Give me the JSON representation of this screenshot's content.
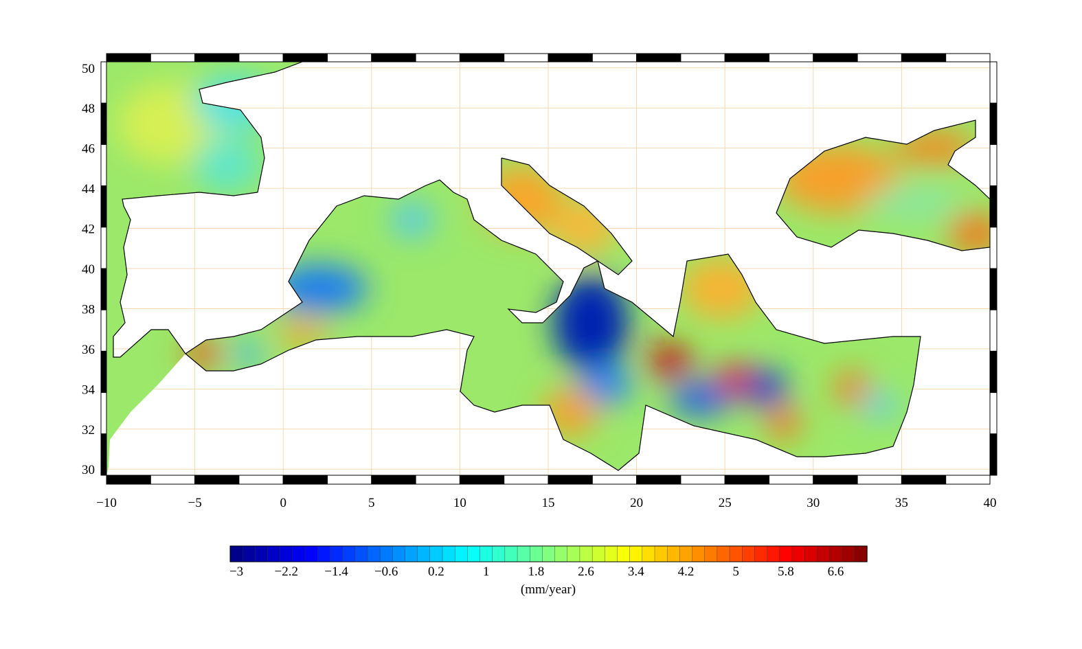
{
  "map": {
    "xticks": [
      {
        "value": -10,
        "label": "−10"
      },
      {
        "value": -5,
        "label": "−5"
      },
      0,
      5,
      10,
      15,
      20,
      25,
      30,
      35,
      40
    ],
    "yticks": [
      30,
      32,
      34,
      36,
      38,
      40,
      42,
      44,
      46,
      48,
      50
    ],
    "xlim": [
      -10,
      40
    ],
    "ylim": [
      29.7,
      50.3
    ],
    "colorbar": {
      "label": "(mm/year)",
      "clim": [
        -3.1,
        7.1
      ],
      "ticks": [
        {
          "value": -3,
          "label": "−3"
        },
        {
          "value": -2.2,
          "label": "−2.2"
        },
        {
          "value": -1.4,
          "label": "−1.4"
        },
        {
          "value": -0.6,
          "label": "−0.6"
        },
        0.2,
        1,
        1.8,
        2.6,
        3.4,
        4.2,
        5,
        5.8,
        6.6
      ]
    }
  }
}
